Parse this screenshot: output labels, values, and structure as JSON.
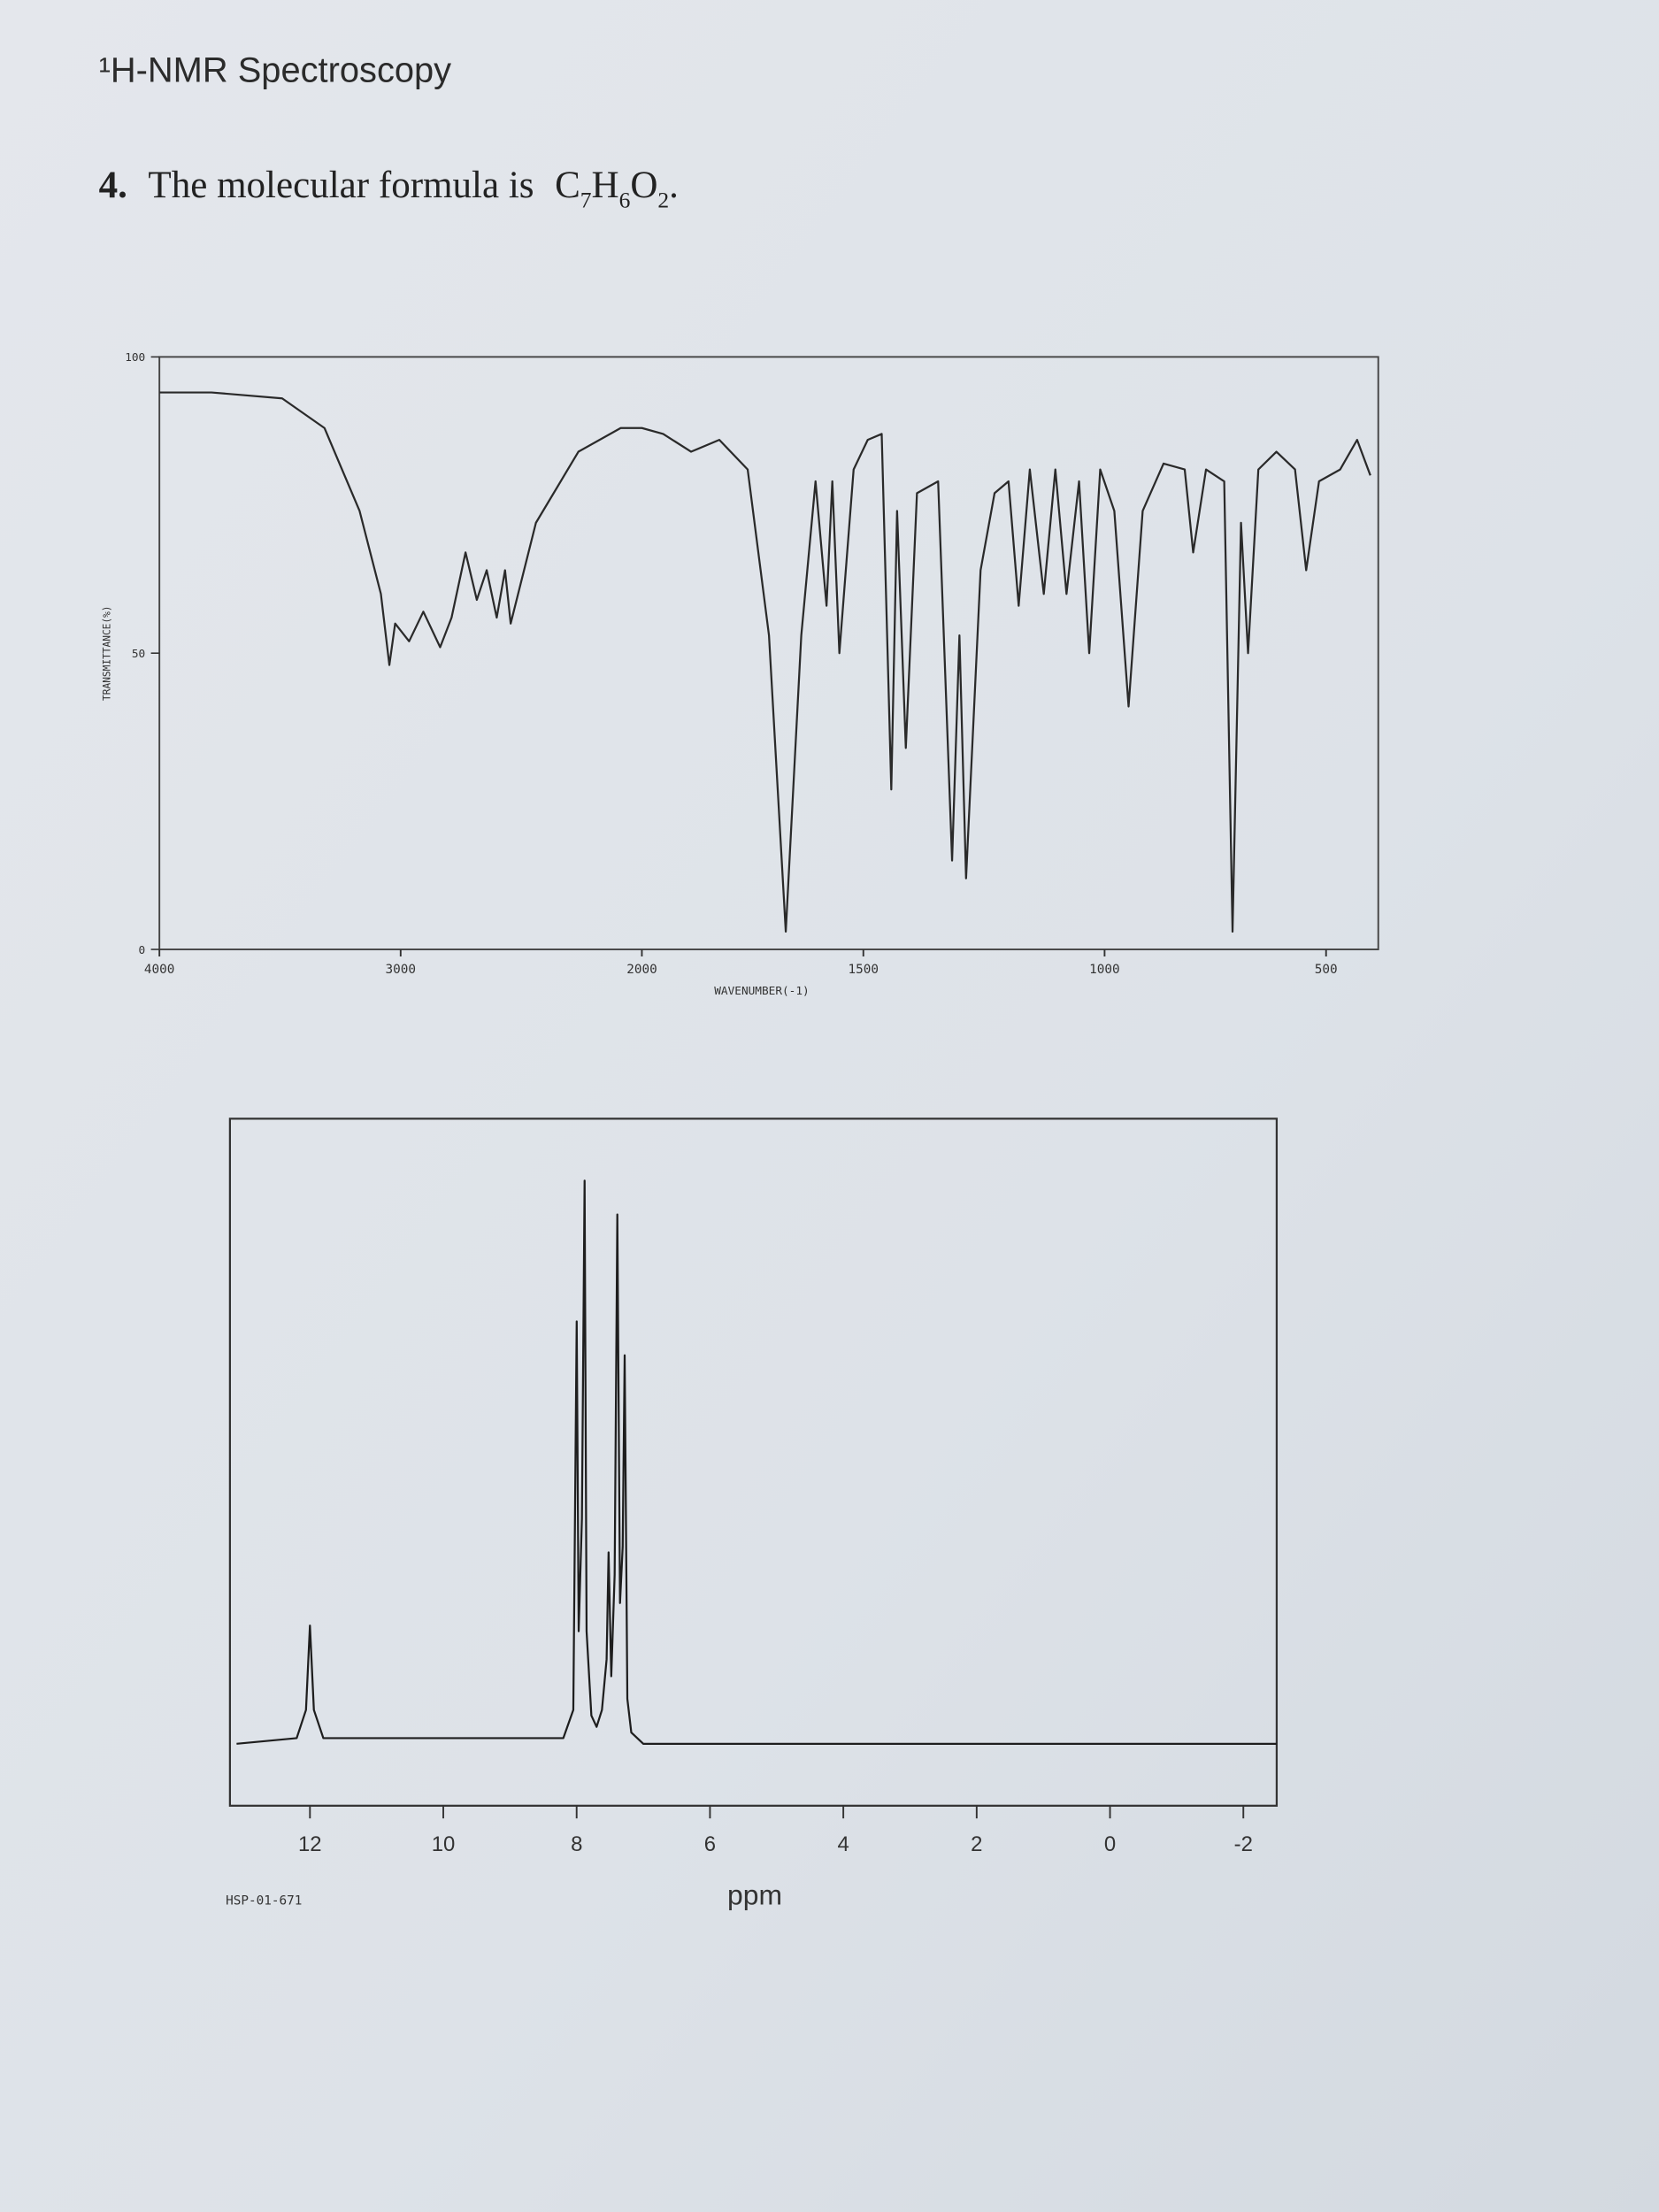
{
  "header": {
    "title": "¹H-NMR Spectroscopy"
  },
  "question": {
    "number": "4.",
    "text": "The molecular formula is",
    "formula": [
      {
        "symbol": "C",
        "count": 7
      },
      {
        "symbol": "H",
        "count": 6
      },
      {
        "symbol": "O",
        "count": 2
      }
    ],
    "end": "."
  },
  "chart_data": [
    {
      "type": "line",
      "x_label": "WAVENUMBER(-1)",
      "y_label": "TRANSMITTANCE(%)",
      "color": "#2a2a2a",
      "xlim": [
        4000,
        400
      ],
      "ylim": [
        0,
        100
      ],
      "xticks": [
        4000,
        3000,
        2000,
        1500,
        1000,
        500
      ],
      "yticks": [
        0,
        50,
        100
      ],
      "x": [
        4000,
        3784,
        3491,
        3316,
        3170,
        3082,
        3047,
        3023,
        2965,
        2906,
        2836,
        2789,
        2731,
        2684,
        2643,
        2602,
        2567,
        2544,
        2439,
        2263,
        2088,
        2000,
        1952,
        1889,
        1825,
        1761,
        1713,
        1675,
        1640,
        1608,
        1583,
        1570,
        1554,
        1522,
        1491,
        1462,
        1442,
        1430,
        1412,
        1389,
        1345,
        1316,
        1301,
        1287,
        1257,
        1228,
        1199,
        1178,
        1155,
        1126,
        1102,
        1079,
        1053,
        1032,
        1009,
        978,
        946,
        914,
        867,
        819,
        800,
        771,
        730,
        711,
        692,
        676,
        653,
        612,
        570,
        545,
        516,
        468,
        430,
        400
      ],
      "values": [
        94,
        94,
        93,
        88,
        74,
        60,
        48,
        55,
        52,
        57,
        51,
        56,
        67,
        59,
        64,
        56,
        64,
        55,
        72,
        84,
        88,
        88,
        87,
        84,
        86,
        81,
        53,
        3,
        53,
        79,
        58,
        79,
        50,
        81,
        86,
        87,
        27,
        74,
        34,
        77,
        79,
        15,
        53,
        12,
        64,
        77,
        79,
        58,
        81,
        60,
        81,
        60,
        79,
        50,
        81,
        74,
        41,
        74,
        82,
        81,
        67,
        81,
        79,
        3,
        72,
        50,
        81,
        84,
        81,
        64,
        79,
        81,
        86,
        80
      ]
    },
    {
      "type": "line",
      "x_label": "ppm",
      "code": "HSP-01-671",
      "color": "#1e1e1e",
      "xlim": [
        13.2,
        -2.5
      ],
      "ylim": [
        -11,
        111
      ],
      "xticks": [
        12,
        10,
        8,
        6,
        4,
        2,
        0,
        -2
      ],
      "x": [
        13.1,
        12.2,
        12.06,
        12.0,
        11.94,
        11.8,
        8.2,
        8.05,
        8.0,
        7.97,
        7.92,
        7.88,
        7.85,
        7.78,
        7.7,
        7.62,
        7.55,
        7.52,
        7.48,
        7.43,
        7.39,
        7.35,
        7.31,
        7.28,
        7.24,
        7.18,
        7.0,
        -2.5
      ],
      "values": [
        0,
        1,
        6,
        21,
        6,
        1,
        1,
        6,
        75,
        20,
        40,
        100,
        20,
        5,
        3,
        6,
        15,
        34,
        12,
        30,
        94,
        25,
        35,
        69,
        8,
        2,
        0,
        0
      ]
    }
  ]
}
